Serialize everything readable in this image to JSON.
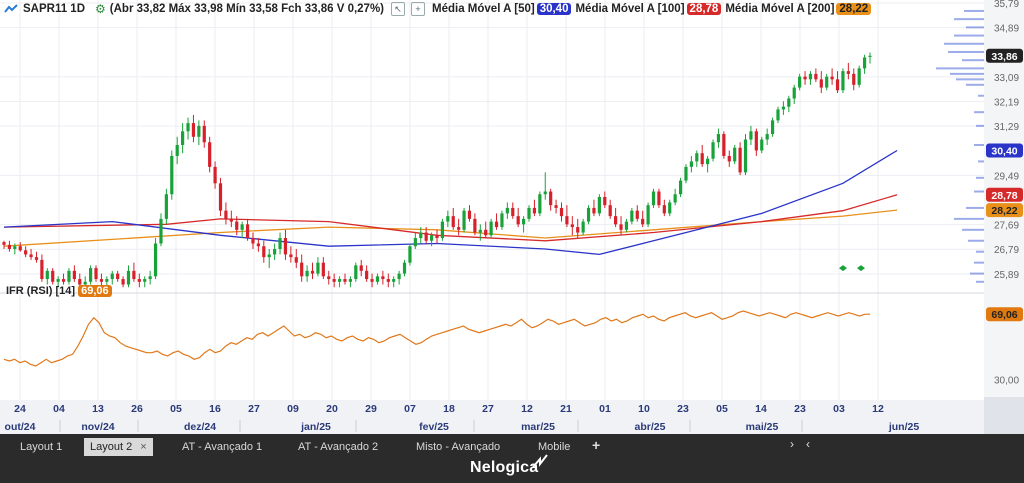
{
  "header": {
    "symbol": "SAPR11 1D",
    "ohlc": "(Abr 33,82 Máx 33,98 Mín 33,58 Fch 33,86 V 0,27%)",
    "ma50_label": "Média Móvel A [50]",
    "ma50_value": "30,40",
    "ma100_label": "Média Móvel A [100]",
    "ma100_value": "28,78",
    "ma200_label": "Média Móvel A [200]",
    "ma200_value": "28,22"
  },
  "rsi": {
    "label": "IFR (RSI) [14]",
    "value": "69,06"
  },
  "tabs": [
    {
      "label": "Layout 1"
    },
    {
      "label": "Layout 2",
      "close": "×"
    },
    {
      "label": "AT - Avançado 1"
    },
    {
      "label": "AT - Avançado 2"
    },
    {
      "label": "Misto - Avançado"
    },
    {
      "label": "Mobile"
    }
  ],
  "brand": "Nelogica",
  "colors": {
    "up": "#1aa23a",
    "down": "#d6202a",
    "ma50": "#2a34c8",
    "ma100": "#d62a2a",
    "ma200": "#e8901a",
    "rsi": "#e0781a",
    "last": "#222222"
  },
  "chart_data": {
    "type": "candlestick",
    "price_axis": {
      "ticks": [
        "35,79",
        "34,89",
        "33,09",
        "32,19",
        "31,29",
        "29,49",
        "27,69",
        "26,79",
        "25,89"
      ],
      "ylim": [
        25.3,
        35.9
      ],
      "badges": [
        {
          "label": "33,86",
          "value": 33.86,
          "color": "#222222"
        },
        {
          "label": "30,40",
          "value": 30.4,
          "color": "#2a34c8"
        },
        {
          "label": "28,78",
          "value": 28.78,
          "color": "#d62a2a"
        },
        {
          "label": "28,22",
          "value": 28.22,
          "color": "#e8901a"
        }
      ]
    },
    "rsi_axis": {
      "ticks": [
        "30,00"
      ],
      "ylim": [
        20,
        80
      ],
      "badge": {
        "label": "69,06",
        "value": 69.06
      }
    },
    "x_day_labels": [
      "24",
      "04",
      "13",
      "26",
      "05",
      "16",
      "27",
      "09",
      "20",
      "29",
      "07",
      "18",
      "27",
      "12",
      "21",
      "01",
      "10",
      "23",
      "05",
      "14",
      "23",
      "03",
      "12"
    ],
    "x_month_labels": [
      "out/24",
      "nov/24",
      "dez/24",
      "jan/25",
      "fev/25",
      "mar/25",
      "abr/25",
      "mai/25",
      "jun/25"
    ],
    "candles": [
      [
        27.05,
        27.1,
        26.8,
        26.95
      ],
      [
        26.95,
        27.1,
        26.7,
        26.8
      ],
      [
        26.8,
        27.0,
        26.6,
        26.9
      ],
      [
        26.9,
        27.05,
        26.7,
        26.75
      ],
      [
        26.75,
        26.9,
        26.5,
        26.6
      ],
      [
        26.6,
        26.8,
        26.4,
        26.5
      ],
      [
        26.5,
        26.7,
        26.3,
        26.4
      ],
      [
        26.4,
        26.6,
        25.6,
        25.7
      ],
      [
        25.7,
        26.1,
        25.5,
        26.0
      ],
      [
        26.0,
        26.1,
        25.5,
        25.6
      ],
      [
        25.6,
        25.8,
        25.4,
        25.7
      ],
      [
        25.7,
        25.9,
        25.5,
        25.6
      ],
      [
        25.6,
        26.1,
        25.5,
        26.0
      ],
      [
        26.0,
        26.2,
        25.6,
        25.7
      ],
      [
        25.7,
        25.9,
        25.4,
        25.5
      ],
      [
        25.5,
        25.8,
        25.4,
        25.6
      ],
      [
        25.6,
        26.2,
        25.5,
        26.1
      ],
      [
        26.1,
        26.2,
        25.6,
        25.7
      ],
      [
        25.7,
        25.9,
        25.4,
        25.6
      ],
      [
        25.6,
        25.8,
        25.4,
        25.7
      ],
      [
        25.7,
        26.0,
        25.5,
        25.9
      ],
      [
        25.9,
        26.0,
        25.6,
        25.7
      ],
      [
        25.7,
        25.8,
        25.4,
        25.5
      ],
      [
        25.5,
        26.2,
        25.4,
        26.0
      ],
      [
        26.0,
        26.3,
        25.6,
        25.7
      ],
      [
        25.7,
        25.9,
        25.4,
        25.6
      ],
      [
        25.6,
        25.8,
        25.4,
        25.7
      ],
      [
        25.7,
        26.0,
        25.5,
        25.8
      ],
      [
        25.8,
        27.2,
        25.7,
        27.0
      ],
      [
        27.0,
        28.1,
        26.9,
        27.9
      ],
      [
        27.9,
        29.0,
        27.7,
        28.8
      ],
      [
        28.8,
        30.4,
        28.6,
        30.2
      ],
      [
        30.2,
        30.9,
        29.9,
        30.6
      ],
      [
        30.6,
        31.4,
        30.3,
        31.1
      ],
      [
        31.1,
        31.6,
        30.8,
        31.4
      ],
      [
        31.4,
        31.7,
        30.7,
        30.9
      ],
      [
        30.9,
        31.5,
        30.6,
        31.3
      ],
      [
        31.3,
        31.5,
        30.5,
        30.7
      ],
      [
        30.7,
        30.9,
        29.6,
        29.8
      ],
      [
        29.8,
        30.0,
        29.0,
        29.2
      ],
      [
        29.2,
        29.4,
        28.0,
        28.2
      ],
      [
        28.2,
        28.5,
        27.7,
        27.9
      ],
      [
        27.9,
        28.2,
        27.6,
        27.8
      ],
      [
        27.8,
        28.0,
        27.3,
        27.5
      ],
      [
        27.5,
        27.8,
        27.2,
        27.7
      ],
      [
        27.7,
        27.9,
        27.1,
        27.2
      ],
      [
        27.2,
        27.4,
        26.8,
        27.0
      ],
      [
        27.0,
        27.2,
        26.7,
        26.9
      ],
      [
        26.9,
        27.1,
        26.3,
        26.5
      ],
      [
        26.5,
        26.8,
        26.1,
        26.6
      ],
      [
        26.6,
        27.0,
        26.4,
        26.8
      ],
      [
        26.8,
        27.4,
        26.6,
        27.2
      ],
      [
        27.2,
        27.5,
        26.4,
        26.6
      ],
      [
        26.6,
        26.9,
        26.3,
        26.5
      ],
      [
        26.5,
        26.8,
        26.1,
        26.3
      ],
      [
        26.3,
        26.6,
        25.6,
        25.8
      ],
      [
        25.8,
        26.2,
        25.6,
        26.0
      ],
      [
        26.0,
        26.3,
        25.7,
        25.9
      ],
      [
        25.9,
        26.5,
        25.8,
        26.3
      ],
      [
        26.3,
        26.5,
        25.7,
        25.8
      ],
      [
        25.8,
        26.0,
        25.5,
        25.7
      ],
      [
        25.7,
        25.9,
        25.4,
        25.6
      ],
      [
        25.6,
        25.8,
        25.4,
        25.7
      ],
      [
        25.7,
        25.9,
        25.5,
        25.6
      ],
      [
        25.6,
        25.8,
        25.4,
        25.7
      ],
      [
        25.7,
        26.3,
        25.6,
        26.2
      ],
      [
        26.2,
        26.4,
        25.8,
        26.0
      ],
      [
        26.0,
        26.2,
        25.6,
        25.7
      ],
      [
        25.7,
        25.9,
        25.4,
        25.6
      ],
      [
        25.6,
        25.9,
        25.5,
        25.8
      ],
      [
        25.8,
        26.0,
        25.5,
        25.7
      ],
      [
        25.7,
        25.9,
        25.4,
        25.6
      ],
      [
        25.6,
        25.8,
        25.4,
        25.7
      ],
      [
        25.7,
        26.0,
        25.5,
        25.9
      ],
      [
        25.9,
        26.4,
        25.8,
        26.3
      ],
      [
        26.3,
        27.0,
        26.2,
        26.9
      ],
      [
        26.9,
        27.4,
        26.8,
        27.2
      ],
      [
        27.2,
        27.6,
        27.0,
        27.4
      ],
      [
        27.4,
        27.6,
        27.0,
        27.1
      ],
      [
        27.1,
        27.4,
        26.9,
        27.3
      ],
      [
        27.3,
        27.5,
        27.0,
        27.2
      ],
      [
        27.2,
        27.9,
        27.1,
        27.8
      ],
      [
        27.8,
        28.2,
        27.6,
        28.0
      ],
      [
        28.0,
        28.3,
        27.5,
        27.6
      ],
      [
        27.6,
        27.9,
        27.3,
        27.5
      ],
      [
        27.5,
        28.3,
        27.4,
        28.2
      ],
      [
        28.2,
        28.4,
        27.8,
        27.9
      ],
      [
        27.9,
        28.1,
        27.3,
        27.4
      ],
      [
        27.4,
        27.7,
        27.1,
        27.5
      ],
      [
        27.5,
        27.8,
        27.2,
        27.3
      ],
      [
        27.3,
        27.9,
        27.2,
        27.8
      ],
      [
        27.8,
        28.1,
        27.5,
        27.6
      ],
      [
        27.6,
        28.2,
        27.5,
        28.1
      ],
      [
        28.1,
        28.5,
        27.9,
        28.3
      ],
      [
        28.3,
        28.5,
        27.9,
        28.0
      ],
      [
        28.0,
        28.3,
        27.6,
        27.7
      ],
      [
        27.7,
        28.0,
        27.4,
        27.9
      ],
      [
        27.9,
        28.4,
        27.8,
        28.3
      ],
      [
        28.3,
        28.6,
        28.0,
        28.1
      ],
      [
        28.1,
        28.9,
        28.0,
        28.8
      ],
      [
        28.8,
        29.6,
        28.6,
        28.9
      ],
      [
        28.9,
        29.0,
        28.2,
        28.4
      ],
      [
        28.4,
        28.6,
        28.1,
        28.3
      ],
      [
        28.3,
        28.5,
        27.8,
        28.0
      ],
      [
        28.0,
        28.4,
        27.6,
        27.7
      ],
      [
        27.7,
        28.0,
        27.3,
        27.6
      ],
      [
        27.6,
        27.9,
        27.2,
        27.4
      ],
      [
        27.4,
        27.9,
        27.3,
        27.8
      ],
      [
        27.8,
        28.4,
        27.7,
        28.3
      ],
      [
        28.3,
        28.6,
        28.0,
        28.1
      ],
      [
        28.1,
        28.8,
        28.0,
        28.7
      ],
      [
        28.7,
        28.9,
        28.3,
        28.4
      ],
      [
        28.4,
        28.6,
        27.9,
        28.0
      ],
      [
        28.0,
        28.3,
        27.6,
        27.7
      ],
      [
        27.7,
        28.0,
        27.3,
        27.5
      ],
      [
        27.5,
        27.9,
        27.4,
        27.8
      ],
      [
        27.8,
        28.3,
        27.7,
        28.2
      ],
      [
        28.2,
        28.4,
        27.8,
        27.9
      ],
      [
        27.9,
        28.2,
        27.6,
        27.7
      ],
      [
        27.7,
        28.5,
        27.6,
        28.4
      ],
      [
        28.4,
        29.0,
        28.3,
        28.9
      ],
      [
        28.9,
        29.0,
        28.3,
        28.4
      ],
      [
        28.4,
        28.6,
        28.0,
        28.1
      ],
      [
        28.1,
        28.6,
        28.0,
        28.5
      ],
      [
        28.5,
        29.0,
        28.4,
        28.8
      ],
      [
        28.8,
        29.4,
        28.7,
        29.3
      ],
      [
        29.3,
        29.9,
        29.2,
        29.8
      ],
      [
        29.8,
        30.2,
        29.6,
        30.0
      ],
      [
        30.0,
        30.4,
        29.8,
        30.3
      ],
      [
        30.3,
        30.6,
        29.8,
        29.9
      ],
      [
        29.9,
        30.2,
        29.6,
        30.1
      ],
      [
        30.1,
        30.8,
        30.0,
        30.7
      ],
      [
        30.7,
        31.2,
        30.5,
        31.0
      ],
      [
        31.0,
        31.1,
        30.1,
        30.2
      ],
      [
        30.2,
        30.4,
        29.8,
        30.0
      ],
      [
        30.0,
        30.6,
        29.9,
        30.5
      ],
      [
        30.5,
        30.7,
        29.5,
        29.6
      ],
      [
        29.6,
        31.0,
        29.5,
        30.8
      ],
      [
        30.8,
        31.3,
        30.6,
        31.1
      ],
      [
        31.1,
        31.2,
        30.2,
        30.4
      ],
      [
        30.4,
        30.9,
        30.3,
        30.8
      ],
      [
        30.8,
        31.2,
        30.6,
        31.0
      ],
      [
        31.0,
        31.6,
        30.9,
        31.5
      ],
      [
        31.5,
        32.0,
        31.4,
        31.9
      ],
      [
        31.9,
        32.2,
        31.7,
        32.0
      ],
      [
        32.0,
        32.4,
        31.8,
        32.3
      ],
      [
        32.3,
        32.8,
        32.1,
        32.7
      ],
      [
        32.7,
        33.2,
        32.6,
        33.1
      ],
      [
        33.1,
        33.3,
        32.8,
        33.0
      ],
      [
        33.0,
        33.3,
        32.8,
        33.2
      ],
      [
        33.2,
        33.4,
        32.9,
        33.0
      ],
      [
        33.0,
        33.3,
        32.5,
        32.7
      ],
      [
        32.7,
        33.2,
        32.6,
        33.1
      ],
      [
        33.1,
        33.4,
        32.8,
        33.0
      ],
      [
        33.0,
        33.3,
        32.5,
        32.6
      ],
      [
        32.6,
        33.4,
        32.5,
        33.3
      ],
      [
        33.3,
        33.6,
        33.0,
        33.2
      ],
      [
        33.2,
        33.4,
        32.6,
        32.8
      ],
      [
        32.8,
        33.5,
        32.7,
        33.4
      ],
      [
        33.4,
        33.9,
        33.2,
        33.8
      ],
      [
        33.82,
        33.98,
        33.58,
        33.86
      ]
    ],
    "ma50": [
      [
        0,
        27.6
      ],
      [
        20,
        27.8
      ],
      [
        40,
        27.3
      ],
      [
        60,
        26.9
      ],
      [
        80,
        27.0
      ],
      [
        100,
        26.8
      ],
      [
        110,
        26.6
      ],
      [
        120,
        27.1
      ],
      [
        140,
        28.1
      ],
      [
        155,
        29.2
      ],
      [
        165,
        30.4
      ]
    ],
    "ma100": [
      [
        0,
        27.6
      ],
      [
        30,
        27.7
      ],
      [
        40,
        27.9
      ],
      [
        60,
        27.8
      ],
      [
        80,
        27.3
      ],
      [
        100,
        27.1
      ],
      [
        120,
        27.4
      ],
      [
        140,
        27.8
      ],
      [
        155,
        28.2
      ],
      [
        165,
        28.78
      ]
    ],
    "ma200": [
      [
        0,
        26.9
      ],
      [
        40,
        27.4
      ],
      [
        60,
        27.6
      ],
      [
        80,
        27.5
      ],
      [
        100,
        27.2
      ],
      [
        120,
        27.5
      ],
      [
        140,
        27.8
      ],
      [
        155,
        28.0
      ],
      [
        165,
        28.22
      ]
    ],
    "rsi": [
      42,
      41,
      42,
      40,
      41,
      39,
      38,
      40,
      42,
      40,
      41,
      42,
      44,
      45,
      50,
      56,
      63,
      67,
      64,
      58,
      56,
      55,
      52,
      50,
      49,
      48,
      47,
      46,
      46,
      47,
      45,
      44,
      46,
      47,
      45,
      44,
      42,
      43,
      46,
      48,
      46,
      47,
      50,
      52,
      51,
      53,
      55,
      54,
      57,
      58,
      56,
      58,
      60,
      62,
      59,
      56,
      57,
      55,
      56,
      58,
      57,
      55,
      56,
      54,
      53,
      55,
      56,
      54,
      53,
      55,
      54,
      52,
      53,
      55,
      56,
      57,
      55,
      53,
      51,
      52,
      54,
      56,
      57,
      58,
      59,
      60,
      61,
      62,
      60,
      59,
      58,
      59,
      60,
      61,
      62,
      63,
      62,
      64,
      66,
      63,
      61,
      62,
      64,
      66,
      65,
      63,
      64,
      65,
      66,
      64,
      62,
      63,
      64,
      66,
      67,
      65,
      66,
      64,
      65,
      67,
      68,
      69,
      67,
      68,
      66,
      65,
      67,
      68,
      69,
      70,
      68,
      67,
      68,
      69,
      70,
      68,
      66,
      67,
      68,
      70,
      71,
      70,
      69,
      68,
      69,
      70,
      69,
      68,
      67,
      69,
      70,
      69,
      68,
      67,
      68,
      69,
      70,
      69,
      68,
      69,
      70,
      69,
      68,
      69,
      69.06
    ]
  }
}
